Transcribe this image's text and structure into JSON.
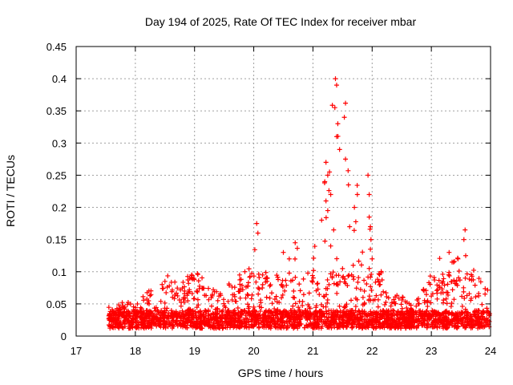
{
  "chart_data": {
    "type": "scatter",
    "title": "Day 194 of 2025, Rate Of TEC Index for receiver mbar",
    "xlabel": "GPS time / hours",
    "ylabel": "ROTI / TECUs",
    "xlim": [
      17,
      24
    ],
    "ylim": [
      0,
      0.45
    ],
    "xticks": [
      "17",
      "18",
      "19",
      "20",
      "21",
      "22",
      "23",
      "24"
    ],
    "yticks": [
      "0",
      "0.05",
      "0.1",
      "0.15",
      "0.2",
      "0.25",
      "0.3",
      "0.35",
      "0.4",
      "0.45"
    ],
    "grid": true,
    "marker": "+",
    "color": "#ff0000",
    "series": [
      {
        "name": "ROTI",
        "envelope_x": [
          17.55,
          17.75,
          18.0,
          18.25,
          18.5,
          18.75,
          19.0,
          19.25,
          19.5,
          19.75,
          20.0,
          20.25,
          20.5,
          20.75,
          21.0,
          21.2,
          21.4,
          21.6,
          21.8,
          22.0,
          22.25,
          22.5,
          22.75,
          23.0,
          23.25,
          23.5,
          23.75,
          24.0
        ],
        "envelope_y": [
          0.035,
          0.042,
          0.04,
          0.06,
          0.085,
          0.07,
          0.09,
          0.07,
          0.07,
          0.09,
          0.125,
          0.1,
          0.12,
          0.13,
          0.11,
          0.26,
          0.4,
          0.36,
          0.21,
          0.25,
          0.055,
          0.05,
          0.045,
          0.1,
          0.12,
          0.165,
          0.09,
          0.06
        ],
        "outliers": [
          {
            "x": 21.38,
            "y": 0.4
          },
          {
            "x": 21.4,
            "y": 0.39
          },
          {
            "x": 21.37,
            "y": 0.355
          },
          {
            "x": 21.55,
            "y": 0.362
          },
          {
            "x": 21.53,
            "y": 0.34
          },
          {
            "x": 21.42,
            "y": 0.33
          },
          {
            "x": 21.4,
            "y": 0.31
          },
          {
            "x": 21.45,
            "y": 0.29
          },
          {
            "x": 21.55,
            "y": 0.275
          },
          {
            "x": 21.22,
            "y": 0.27
          },
          {
            "x": 21.25,
            "y": 0.25
          },
          {
            "x": 21.28,
            "y": 0.255
          },
          {
            "x": 21.2,
            "y": 0.24
          },
          {
            "x": 21.6,
            "y": 0.235
          },
          {
            "x": 21.75,
            "y": 0.22
          },
          {
            "x": 21.3,
            "y": 0.22
          },
          {
            "x": 21.22,
            "y": 0.21
          },
          {
            "x": 21.93,
            "y": 0.25
          },
          {
            "x": 21.95,
            "y": 0.22
          },
          {
            "x": 21.7,
            "y": 0.2
          },
          {
            "x": 21.95,
            "y": 0.185
          },
          {
            "x": 21.97,
            "y": 0.17
          },
          {
            "x": 21.62,
            "y": 0.17
          },
          {
            "x": 21.25,
            "y": 0.195
          },
          {
            "x": 21.35,
            "y": 0.165
          },
          {
            "x": 21.3,
            "y": 0.14
          },
          {
            "x": 21.98,
            "y": 0.15
          },
          {
            "x": 21.97,
            "y": 0.135
          },
          {
            "x": 20.05,
            "y": 0.175
          },
          {
            "x": 20.07,
            "y": 0.16
          },
          {
            "x": 23.57,
            "y": 0.165
          },
          {
            "x": 23.55,
            "y": 0.15
          },
          {
            "x": 20.7,
            "y": 0.145
          },
          {
            "x": 22.0,
            "y": 0.12
          },
          {
            "x": 21.68,
            "y": 0.11
          },
          {
            "x": 21.95,
            "y": 0.105
          },
          {
            "x": 23.3,
            "y": 0.13
          },
          {
            "x": 23.35,
            "y": 0.115
          },
          {
            "x": 23.45,
            "y": 0.12
          },
          {
            "x": 20.5,
            "y": 0.13
          },
          {
            "x": 20.6,
            "y": 0.12
          },
          {
            "x": 20.15,
            "y": 0.095
          },
          {
            "x": 19.85,
            "y": 0.1
          },
          {
            "x": 18.95,
            "y": 0.095
          },
          {
            "x": 18.5,
            "y": 0.085
          }
        ]
      }
    ]
  }
}
